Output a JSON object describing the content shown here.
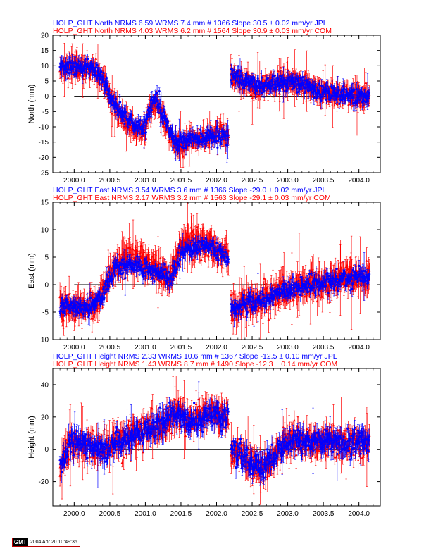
{
  "chart_data": [
    {
      "type": "scatter",
      "title_lines": [
        {
          "text": "HOLP_GHT North NRMS 6.59 WRMS  7.4 mm # 1366 Slope   30.5 ±  0.02 mm/yr JPL",
          "color": "#0000ff"
        },
        {
          "text": "HOLP_GHT North NRMS 4.03 WRMS  6.2 mm # 1564 Slope   30.9 ±  0.03 mm/yr COM",
          "color": "#ff0000"
        }
      ],
      "ylabel": "North (mm)",
      "xlim": [
        1999.7,
        2004.3
      ],
      "ylim": [
        -25,
        20
      ],
      "yticks": [
        -25,
        -20,
        -15,
        -10,
        -5,
        0,
        5,
        10,
        15,
        20
      ],
      "xticks": [
        2000.0,
        2000.5,
        2001.0,
        2001.5,
        2002.0,
        2002.5,
        2003.0,
        2003.5,
        2004.0
      ],
      "xtick_labels": [
        "2000.0",
        "2000.5",
        "2001.0",
        "2001.5",
        "2002.0",
        "2002.5",
        "2003.0",
        "2003.5",
        "2004.0"
      ],
      "zero_line": true,
      "series": [
        {
          "name": "JPL",
          "color": "#0000ff",
          "marker": "circle",
          "trend": [
            [
              1999.8,
              10
            ],
            [
              2000.15,
              9.5
            ],
            [
              2000.3,
              9
            ],
            [
              2000.4,
              6
            ],
            [
              2000.55,
              -2
            ],
            [
              2000.7,
              -6
            ],
            [
              2000.85,
              -9
            ],
            [
              2001.0,
              -10
            ],
            [
              2001.05,
              -4
            ],
            [
              2001.15,
              -1
            ],
            [
              2001.25,
              -6
            ],
            [
              2001.35,
              -12
            ],
            [
              2001.45,
              -15
            ],
            [
              2001.6,
              -14
            ],
            [
              2001.75,
              -14
            ],
            [
              2001.9,
              -13
            ],
            [
              2002.05,
              -13
            ],
            [
              2002.17,
              -13
            ],
            [
              2002.2,
              7
            ],
            [
              2002.4,
              5
            ],
            [
              2002.6,
              3
            ],
            [
              2002.8,
              4
            ],
            [
              2003.0,
              5
            ],
            [
              2003.2,
              4
            ],
            [
              2003.4,
              2
            ],
            [
              2003.6,
              1
            ],
            [
              2003.8,
              0.5
            ],
            [
              2004.0,
              0
            ],
            [
              2004.15,
              0
            ]
          ],
          "noise": 2.2,
          "err": 1.8,
          "spacing": 0.004,
          "seed": 11
        },
        {
          "name": "COM",
          "color": "#ff0000",
          "marker": "triangle",
          "trend": [
            [
              1999.8,
              10
            ],
            [
              2000.15,
              9.5
            ],
            [
              2000.3,
              9
            ],
            [
              2000.4,
              6
            ],
            [
              2000.55,
              -3
            ],
            [
              2000.7,
              -8
            ],
            [
              2000.85,
              -10
            ],
            [
              2001.0,
              -11
            ],
            [
              2001.05,
              -5
            ],
            [
              2001.15,
              -2
            ],
            [
              2001.25,
              -7
            ],
            [
              2001.35,
              -13
            ],
            [
              2001.45,
              -16
            ],
            [
              2001.6,
              -15
            ],
            [
              2001.75,
              -14
            ],
            [
              2001.9,
              -13
            ],
            [
              2002.05,
              -12
            ],
            [
              2002.17,
              -13
            ],
            [
              2002.2,
              7
            ],
            [
              2002.4,
              5
            ],
            [
              2002.6,
              3
            ],
            [
              2002.8,
              4
            ],
            [
              2003.0,
              5
            ],
            [
              2003.2,
              4
            ],
            [
              2003.4,
              2
            ],
            [
              2003.6,
              1
            ],
            [
              2003.8,
              0.5
            ],
            [
              2004.0,
              0
            ],
            [
              2004.15,
              0
            ]
          ],
          "noise": 2.6,
          "err": 2.6,
          "spacing": 0.0035,
          "seed": 23
        }
      ]
    },
    {
      "type": "scatter",
      "title_lines": [
        {
          "text": "HOLP_GHT East NRMS 3.54 WRMS  3.6 mm # 1366 Slope  -29.0 ±  0.02 mm/yr JPL",
          "color": "#0000ff"
        },
        {
          "text": "HOLP_GHT East NRMS 2.17 WRMS  3.2 mm # 1563 Slope  -29.1 ±  0.03 mm/yr COM",
          "color": "#ff0000"
        }
      ],
      "ylabel": "East (mm)",
      "xlim": [
        1999.7,
        2004.3
      ],
      "ylim": [
        -10,
        15
      ],
      "yticks": [
        -10,
        -5,
        0,
        5,
        10,
        15
      ],
      "xticks": [
        2000.0,
        2000.5,
        2001.0,
        2001.5,
        2002.0,
        2002.5,
        2003.0,
        2003.5,
        2004.0
      ],
      "xtick_labels": [
        "2000.0",
        "2000.5",
        "2001.0",
        "2001.5",
        "2002.0",
        "2002.5",
        "2003.0",
        "2003.5",
        "2004.0"
      ],
      "zero_line": true,
      "series": [
        {
          "name": "JPL",
          "color": "#0000ff",
          "marker": "circle",
          "trend": [
            [
              1999.8,
              -4
            ],
            [
              2000.0,
              -4
            ],
            [
              2000.2,
              -4
            ],
            [
              2000.35,
              -3
            ],
            [
              2000.5,
              1
            ],
            [
              2000.6,
              3
            ],
            [
              2000.8,
              4
            ],
            [
              2001.0,
              3
            ],
            [
              2001.2,
              2
            ],
            [
              2001.35,
              1
            ],
            [
              2001.5,
              6
            ],
            [
              2001.7,
              7
            ],
            [
              2001.9,
              7
            ],
            [
              2002.17,
              5
            ],
            [
              2002.2,
              -4
            ],
            [
              2002.4,
              -3.5
            ],
            [
              2002.6,
              -3
            ],
            [
              2002.8,
              -2
            ],
            [
              2003.0,
              -1
            ],
            [
              2003.2,
              -0.5
            ],
            [
              2003.4,
              0
            ],
            [
              2003.6,
              0.5
            ],
            [
              2003.8,
              1
            ],
            [
              2004.0,
              1.5
            ],
            [
              2004.15,
              1.5
            ]
          ],
          "noise": 1.3,
          "err": 1.0,
          "spacing": 0.004,
          "seed": 37
        },
        {
          "name": "COM",
          "color": "#ff0000",
          "marker": "triangle",
          "trend": [
            [
              1999.8,
              -4
            ],
            [
              2000.0,
              -4
            ],
            [
              2000.2,
              -4
            ],
            [
              2000.35,
              -3
            ],
            [
              2000.5,
              2
            ],
            [
              2000.6,
              4
            ],
            [
              2000.8,
              5
            ],
            [
              2001.0,
              4
            ],
            [
              2001.2,
              2.5
            ],
            [
              2001.35,
              1
            ],
            [
              2001.5,
              7
            ],
            [
              2001.7,
              8
            ],
            [
              2001.9,
              7
            ],
            [
              2002.17,
              5
            ],
            [
              2002.2,
              -4
            ],
            [
              2002.4,
              -3.5
            ],
            [
              2002.6,
              -3
            ],
            [
              2002.8,
              -2
            ],
            [
              2003.0,
              -1
            ],
            [
              2003.2,
              -0.5
            ],
            [
              2003.4,
              0
            ],
            [
              2003.6,
              0.5
            ],
            [
              2003.8,
              1
            ],
            [
              2004.0,
              1.5
            ],
            [
              2004.15,
              1.5
            ]
          ],
          "noise": 1.8,
          "err": 2.0,
          "spacing": 0.0035,
          "seed": 41
        }
      ]
    },
    {
      "type": "scatter",
      "title_lines": [
        {
          "text": "HOLP_GHT Height NRMS 2.33 WRMS 10.6 mm # 1367 Slope  -12.5 ±  0.10 mm/yr JPL",
          "color": "#0000ff"
        },
        {
          "text": "HOLP_GHT Height NRMS 1.43 WRMS  8.7 mm # 1490 Slope  -12.3 ±  0.14 mm/yr COM",
          "color": "#ff0000"
        }
      ],
      "ylabel": "Height (mm)",
      "xlim": [
        1999.7,
        2004.3
      ],
      "ylim": [
        -35,
        50
      ],
      "yticks": [
        -20,
        0,
        20,
        40
      ],
      "xticks": [
        2000.0,
        2000.5,
        2001.0,
        2001.5,
        2002.0,
        2002.5,
        2003.0,
        2003.5,
        2004.0
      ],
      "xtick_labels": [
        "2000.0",
        "2000.5",
        "2001.0",
        "2001.5",
        "2002.0",
        "2002.5",
        "2003.0",
        "2003.5",
        "2004.0"
      ],
      "zero_line": true,
      "series": [
        {
          "name": "JPL",
          "color": "#0000ff",
          "marker": "circle",
          "trend": [
            [
              1999.8,
              -12
            ],
            [
              1999.95,
              5
            ],
            [
              2000.2,
              2
            ],
            [
              2000.4,
              0
            ],
            [
              2000.6,
              5
            ],
            [
              2000.8,
              8
            ],
            [
              2001.0,
              12
            ],
            [
              2001.2,
              16
            ],
            [
              2001.4,
              22
            ],
            [
              2001.6,
              18
            ],
            [
              2001.8,
              20
            ],
            [
              2002.0,
              22
            ],
            [
              2002.17,
              18
            ],
            [
              2002.2,
              0
            ],
            [
              2002.35,
              -3
            ],
            [
              2002.5,
              -8
            ],
            [
              2002.65,
              -12
            ],
            [
              2002.8,
              -5
            ],
            [
              2003.0,
              5
            ],
            [
              2003.2,
              6
            ],
            [
              2003.4,
              4
            ],
            [
              2003.6,
              6
            ],
            [
              2003.8,
              4
            ],
            [
              2004.0,
              5
            ],
            [
              2004.15,
              5
            ]
          ],
          "noise": 6.0,
          "err": 5.0,
          "spacing": 0.004,
          "seed": 53
        },
        {
          "name": "COM",
          "color": "#ff0000",
          "marker": "triangle",
          "trend": [
            [
              1999.8,
              -12
            ],
            [
              1999.95,
              5
            ],
            [
              2000.2,
              2
            ],
            [
              2000.4,
              0
            ],
            [
              2000.6,
              5
            ],
            [
              2000.8,
              8
            ],
            [
              2001.0,
              12
            ],
            [
              2001.2,
              16
            ],
            [
              2001.4,
              22
            ],
            [
              2001.6,
              18
            ],
            [
              2001.8,
              20
            ],
            [
              2002.0,
              22
            ],
            [
              2002.17,
              18
            ],
            [
              2002.2,
              0
            ],
            [
              2002.35,
              -3
            ],
            [
              2002.5,
              -8
            ],
            [
              2002.65,
              -12
            ],
            [
              2002.8,
              -5
            ],
            [
              2003.0,
              5
            ],
            [
              2003.2,
              6
            ],
            [
              2003.4,
              4
            ],
            [
              2003.6,
              6
            ],
            [
              2003.8,
              4
            ],
            [
              2004.0,
              5
            ],
            [
              2004.15,
              5
            ]
          ],
          "noise": 7.0,
          "err": 6.0,
          "spacing": 0.0035,
          "seed": 67
        }
      ]
    }
  ],
  "footer": {
    "logo": "GMT",
    "timestamp": "2004 Apr 20 10:49:36"
  }
}
